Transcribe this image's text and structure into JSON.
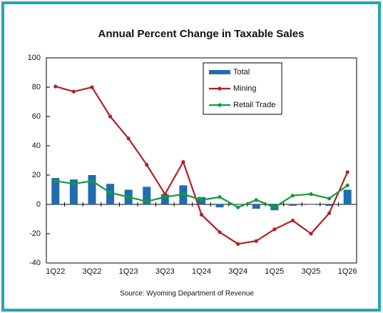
{
  "chart_data": {
    "type": "bar",
    "title": "Annual Percent Change in Taxable Sales",
    "source": "Source: Wyoming Department of Revenue",
    "categories": [
      "1Q22",
      null,
      "3Q22",
      null,
      "1Q23",
      null,
      "3Q23",
      null,
      "1Q24",
      null,
      "3Q24",
      null,
      "1Q25",
      null,
      "3Q25",
      null,
      "1Q26"
    ],
    "series": [
      {
        "name": "Total",
        "type": "bar",
        "color": "#1f6cb0",
        "values": [
          18,
          17,
          20,
          14,
          10,
          12,
          7,
          13,
          5,
          -2,
          0,
          -3,
          -4,
          -1,
          0,
          -1,
          10
        ]
      },
      {
        "name": "Mining",
        "type": "line",
        "color": "#b52025",
        "values": [
          80.5,
          77,
          80,
          60,
          45,
          27,
          7,
          29,
          -7,
          -19,
          -27,
          -25,
          -17,
          -11,
          -20,
          -6,
          22
        ]
      },
      {
        "name": "Retail Trade",
        "type": "line",
        "color": "#139a3b",
        "values": [
          16,
          14,
          16,
          8,
          5,
          2,
          5,
          7,
          3,
          5,
          -2,
          3,
          -2,
          6,
          7,
          4,
          13
        ]
      }
    ],
    "ylim": [
      -40,
      100
    ],
    "yticks": [
      -40,
      -20,
      0,
      20,
      40,
      60,
      80,
      100
    ],
    "grid": false,
    "legend": "upper right"
  }
}
